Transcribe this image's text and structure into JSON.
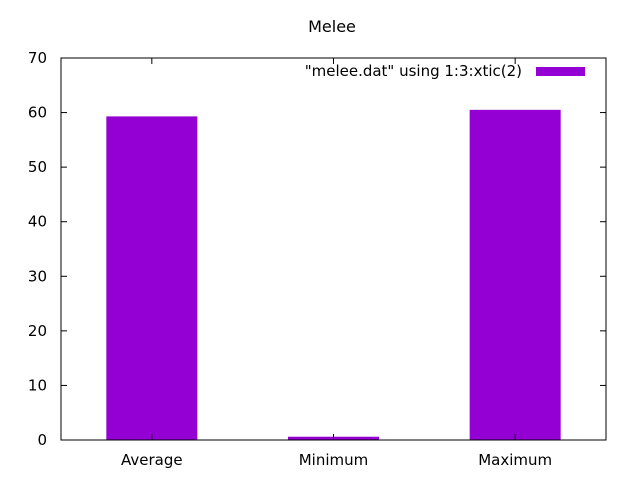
{
  "colors": {
    "bar": "#9400d3",
    "axis": "#000000",
    "background": "#ffffff"
  },
  "chart_data": {
    "type": "bar",
    "title": "Melee",
    "xlabel": "",
    "ylabel": "",
    "categories": [
      "Average",
      "Minimum",
      "Maximum"
    ],
    "series": [
      {
        "name": "\"melee.dat\" using 1:3:xtic(2)",
        "values": [
          59.3,
          0.6,
          60.5
        ]
      }
    ],
    "ylim": [
      0,
      70
    ],
    "yticks": [
      0,
      10,
      20,
      30,
      40,
      50,
      60,
      70
    ],
    "grid": false,
    "legend": "top-right"
  }
}
